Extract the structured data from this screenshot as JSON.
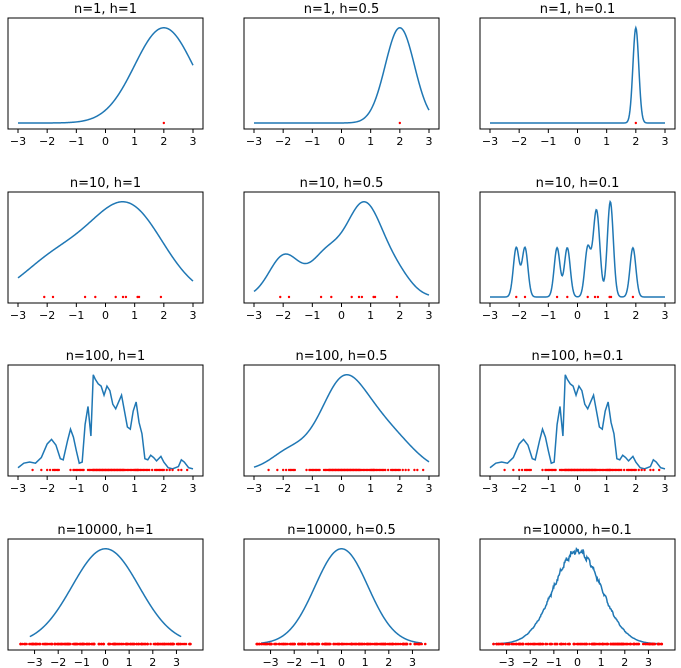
{
  "chart_data": [
    {
      "type": "line",
      "title": "n=1, h=1",
      "n": 1,
      "h": 1,
      "xlim": [
        -3,
        3
      ],
      "xticks": [
        -3,
        -2,
        -1,
        0,
        1,
        2,
        3
      ],
      "points": [
        2.0
      ]
    },
    {
      "type": "line",
      "title": "n=1, h=0.5",
      "n": 1,
      "h": 0.5,
      "xlim": [
        -3,
        3
      ],
      "xticks": [
        -3,
        -2,
        -1,
        0,
        1,
        2,
        3
      ],
      "points": [
        2.0
      ]
    },
    {
      "type": "line",
      "title": "n=1, h=0.1",
      "n": 1,
      "h": 0.1,
      "xlim": [
        -3,
        3
      ],
      "xticks": [
        -3,
        -2,
        -1,
        0,
        1,
        2,
        3
      ],
      "points": [
        2.0
      ]
    },
    {
      "type": "line",
      "title": "n=10, h=1",
      "n": 10,
      "h": 1,
      "xlim": [
        -3,
        3
      ],
      "xticks": [
        -3,
        -2,
        -1,
        0,
        1,
        2,
        3
      ],
      "points": [
        -2.1,
        -1.8,
        -0.7,
        -0.35,
        0.35,
        0.6,
        0.7,
        1.1,
        1.15,
        1.9
      ]
    },
    {
      "type": "line",
      "title": "n=10, h=0.5",
      "n": 10,
      "h": 0.5,
      "xlim": [
        -3,
        3
      ],
      "xticks": [
        -3,
        -2,
        -1,
        0,
        1,
        2,
        3
      ],
      "points": [
        -2.1,
        -1.8,
        -0.7,
        -0.35,
        0.35,
        0.6,
        0.7,
        1.1,
        1.15,
        1.9
      ]
    },
    {
      "type": "line",
      "title": "n=10, h=0.1",
      "n": 10,
      "h": 0.1,
      "xlim": [
        -3,
        3
      ],
      "xticks": [
        -3,
        -2,
        -1,
        0,
        1,
        2,
        3
      ],
      "points": [
        -2.1,
        -1.8,
        -0.7,
        -0.35,
        0.35,
        0.6,
        0.7,
        1.1,
        1.15,
        1.9
      ]
    },
    {
      "type": "line",
      "title": "n=100, h=1",
      "n": 100,
      "h": 1,
      "xlim": [
        -3,
        3
      ],
      "xticks": [
        -3,
        -2,
        -1,
        0,
        1,
        2,
        3
      ],
      "points": [
        -2.5,
        -2.2,
        -2.0,
        -1.9,
        -1.8,
        -1.75,
        -1.7,
        -1.65,
        -1.6,
        -1.2,
        -1.1,
        -1.05,
        -1.0,
        -0.95,
        -0.9,
        -0.85,
        -0.8,
        -0.75,
        -0.6,
        -0.55,
        -0.5,
        -0.45,
        -0.42,
        -0.4,
        -0.38,
        -0.35,
        -0.32,
        -0.3,
        -0.28,
        -0.25,
        -0.22,
        -0.2,
        -0.18,
        -0.15,
        -0.12,
        -0.1,
        -0.08,
        -0.05,
        -0.02,
        0.0,
        0.02,
        0.05,
        0.08,
        0.1,
        0.12,
        0.15,
        0.18,
        0.2,
        0.22,
        0.25,
        0.28,
        0.3,
        0.32,
        0.35,
        0.38,
        0.4,
        0.42,
        0.45,
        0.48,
        0.5,
        0.52,
        0.55,
        0.58,
        0.6,
        0.62,
        0.65,
        0.7,
        0.75,
        0.8,
        0.85,
        0.9,
        0.95,
        1.0,
        1.02,
        1.05,
        1.08,
        1.1,
        1.12,
        1.15,
        1.2,
        1.25,
        1.3,
        1.35,
        1.4,
        1.45,
        1.5,
        1.6,
        1.7,
        1.75,
        1.8,
        1.85,
        1.9,
        1.95,
        2.0,
        2.1,
        2.2,
        2.3,
        2.5,
        2.6,
        2.8
      ],
      "kde": [
        [
          -3.0,
          0.1
        ],
        [
          -2.8,
          0.3
        ],
        [
          -2.6,
          0.35
        ],
        [
          -2.4,
          0.3
        ],
        [
          -2.2,
          0.55
        ],
        [
          -2.0,
          1.15
        ],
        [
          -1.85,
          1.35
        ],
        [
          -1.7,
          1.1
        ],
        [
          -1.55,
          0.5
        ],
        [
          -1.45,
          0.45
        ],
        [
          -1.3,
          1.3
        ],
        [
          -1.2,
          1.8
        ],
        [
          -1.1,
          1.45
        ],
        [
          -1.0,
          0.85
        ],
        [
          -0.9,
          0.3
        ],
        [
          -0.8,
          0.35
        ],
        [
          -0.7,
          2.0
        ],
        [
          -0.6,
          2.8
        ],
        [
          -0.5,
          1.5
        ],
        [
          -0.42,
          4.2
        ],
        [
          -0.35,
          4.0
        ],
        [
          -0.25,
          3.8
        ],
        [
          -0.15,
          3.7
        ],
        [
          -0.05,
          3.3
        ],
        [
          0.05,
          3.7
        ],
        [
          0.15,
          3.5
        ],
        [
          0.25,
          2.9
        ],
        [
          0.35,
          2.7
        ],
        [
          0.45,
          3.0
        ],
        [
          0.55,
          3.3
        ],
        [
          0.65,
          2.6
        ],
        [
          0.75,
          1.9
        ],
        [
          0.85,
          1.8
        ],
        [
          0.95,
          2.6
        ],
        [
          1.05,
          3.0
        ],
        [
          1.15,
          2.1
        ],
        [
          1.25,
          1.6
        ],
        [
          1.35,
          0.5
        ],
        [
          1.45,
          0.45
        ],
        [
          1.55,
          0.65
        ],
        [
          1.65,
          0.55
        ],
        [
          1.75,
          0.4
        ],
        [
          1.9,
          0.6
        ],
        [
          2.0,
          0.35
        ],
        [
          2.15,
          0.1
        ],
        [
          2.3,
          0.05
        ],
        [
          2.5,
          0.15
        ],
        [
          2.6,
          0.45
        ],
        [
          2.7,
          0.35
        ],
        [
          2.85,
          0.1
        ],
        [
          3.0,
          0.05
        ]
      ]
    },
    {
      "type": "line",
      "title": "n=100, h=0.5",
      "n": 100,
      "h": 0.5,
      "xlim": [
        -3,
        3
      ],
      "xticks": [
        -3,
        -2,
        -1,
        0,
        1,
        2,
        3
      ],
      "points": [
        -2.5,
        -2.2,
        -2.0,
        -1.9,
        -1.8,
        -1.75,
        -1.7,
        -1.65,
        -1.6,
        -1.2,
        -1.1,
        -1.05,
        -1.0,
        -0.95,
        -0.9,
        -0.85,
        -0.8,
        -0.75,
        -0.6,
        -0.55,
        -0.5,
        -0.45,
        -0.42,
        -0.4,
        -0.38,
        -0.35,
        -0.32,
        -0.3,
        -0.28,
        -0.25,
        -0.22,
        -0.2,
        -0.18,
        -0.15,
        -0.12,
        -0.1,
        -0.08,
        -0.05,
        -0.02,
        0.0,
        0.02,
        0.05,
        0.08,
        0.1,
        0.12,
        0.15,
        0.18,
        0.2,
        0.22,
        0.25,
        0.28,
        0.3,
        0.32,
        0.35,
        0.38,
        0.4,
        0.42,
        0.45,
        0.48,
        0.5,
        0.52,
        0.55,
        0.58,
        0.6,
        0.62,
        0.65,
        0.7,
        0.75,
        0.8,
        0.85,
        0.9,
        0.95,
        1.0,
        1.02,
        1.05,
        1.08,
        1.1,
        1.12,
        1.15,
        1.2,
        1.25,
        1.3,
        1.35,
        1.4,
        1.45,
        1.5,
        1.6,
        1.7,
        1.75,
        1.8,
        1.85,
        1.9,
        1.95,
        2.0,
        2.1,
        2.2,
        2.3,
        2.5,
        2.6,
        2.8
      ]
    },
    {
      "type": "line",
      "title": "n=100, h=0.1",
      "n": 100,
      "h": 0.1,
      "xlim": [
        -3,
        3
      ],
      "xticks": [
        -3,
        -2,
        -1,
        0,
        1,
        2,
        3
      ],
      "points": [
        -2.5,
        -2.2,
        -2.0,
        -1.9,
        -1.8,
        -1.75,
        -1.7,
        -1.65,
        -1.6,
        -1.2,
        -1.1,
        -1.05,
        -1.0,
        -0.95,
        -0.9,
        -0.85,
        -0.8,
        -0.75,
        -0.6,
        -0.55,
        -0.5,
        -0.45,
        -0.42,
        -0.4,
        -0.38,
        -0.35,
        -0.32,
        -0.3,
        -0.28,
        -0.25,
        -0.22,
        -0.2,
        -0.18,
        -0.15,
        -0.12,
        -0.1,
        -0.08,
        -0.05,
        -0.02,
        0.0,
        0.02,
        0.05,
        0.08,
        0.1,
        0.12,
        0.15,
        0.18,
        0.2,
        0.22,
        0.25,
        0.28,
        0.3,
        0.32,
        0.35,
        0.38,
        0.4,
        0.42,
        0.45,
        0.48,
        0.5,
        0.52,
        0.55,
        0.58,
        0.6,
        0.62,
        0.65,
        0.7,
        0.75,
        0.8,
        0.85,
        0.9,
        0.95,
        1.0,
        1.02,
        1.05,
        1.08,
        1.1,
        1.12,
        1.15,
        1.2,
        1.25,
        1.3,
        1.35,
        1.4,
        1.45,
        1.5,
        1.6,
        1.7,
        1.75,
        1.8,
        1.85,
        1.9,
        1.95,
        2.0,
        2.1,
        2.2,
        2.3,
        2.5,
        2.6,
        2.8
      ],
      "kde": [
        [
          -3.0,
          0.1
        ],
        [
          -2.8,
          0.3
        ],
        [
          -2.6,
          0.35
        ],
        [
          -2.4,
          0.3
        ],
        [
          -2.2,
          0.55
        ],
        [
          -2.0,
          1.15
        ],
        [
          -1.85,
          1.35
        ],
        [
          -1.7,
          1.1
        ],
        [
          -1.55,
          0.5
        ],
        [
          -1.45,
          0.45
        ],
        [
          -1.3,
          1.3
        ],
        [
          -1.2,
          1.8
        ],
        [
          -1.1,
          1.45
        ],
        [
          -1.0,
          0.85
        ],
        [
          -0.9,
          0.3
        ],
        [
          -0.8,
          0.35
        ],
        [
          -0.7,
          2.0
        ],
        [
          -0.6,
          2.8
        ],
        [
          -0.5,
          1.5
        ],
        [
          -0.42,
          4.2
        ],
        [
          -0.35,
          4.0
        ],
        [
          -0.25,
          3.8
        ],
        [
          -0.15,
          3.7
        ],
        [
          -0.05,
          3.3
        ],
        [
          0.05,
          3.7
        ],
        [
          0.15,
          3.5
        ],
        [
          0.25,
          2.9
        ],
        [
          0.35,
          2.7
        ],
        [
          0.45,
          3.0
        ],
        [
          0.55,
          3.3
        ],
        [
          0.65,
          2.6
        ],
        [
          0.75,
          1.9
        ],
        [
          0.85,
          1.8
        ],
        [
          0.95,
          2.6
        ],
        [
          1.05,
          3.0
        ],
        [
          1.15,
          2.1
        ],
        [
          1.25,
          1.6
        ],
        [
          1.35,
          0.5
        ],
        [
          1.45,
          0.45
        ],
        [
          1.55,
          0.65
        ],
        [
          1.65,
          0.55
        ],
        [
          1.75,
          0.4
        ],
        [
          1.9,
          0.6
        ],
        [
          2.0,
          0.35
        ],
        [
          2.15,
          0.1
        ],
        [
          2.3,
          0.05
        ],
        [
          2.5,
          0.15
        ],
        [
          2.6,
          0.45
        ],
        [
          2.7,
          0.35
        ],
        [
          2.85,
          0.1
        ],
        [
          3.0,
          0.05
        ]
      ]
    },
    {
      "type": "line",
      "title": "n=10000, h=1",
      "n": 10000,
      "h": 1,
      "xlim": [
        -3.7,
        3.7
      ],
      "xticks": [
        -3,
        -2,
        -1,
        0,
        1,
        2,
        3
      ],
      "points_range": [
        -3.6,
        3.6
      ],
      "curve_range": [
        -3.2,
        3.2
      ]
    },
    {
      "type": "line",
      "title": "n=10000, h=0.5",
      "n": 10000,
      "h": 0.5,
      "xlim": [
        -3.7,
        3.7
      ],
      "xticks": [
        -3,
        -2,
        -1,
        0,
        1,
        2,
        3
      ],
      "points_range": [
        -3.6,
        3.6
      ],
      "curve_range": [
        -3.4,
        3.4
      ]
    },
    {
      "type": "line",
      "title": "n=10000, h=0.1",
      "n": 10000,
      "h": 0.1,
      "xlim": [
        -3.7,
        3.7
      ],
      "xticks": [
        -3,
        -2,
        -1,
        0,
        1,
        2,
        3
      ],
      "points_range": [
        -3.6,
        3.6
      ],
      "curve_range": [
        -3.5,
        3.5
      ]
    }
  ]
}
